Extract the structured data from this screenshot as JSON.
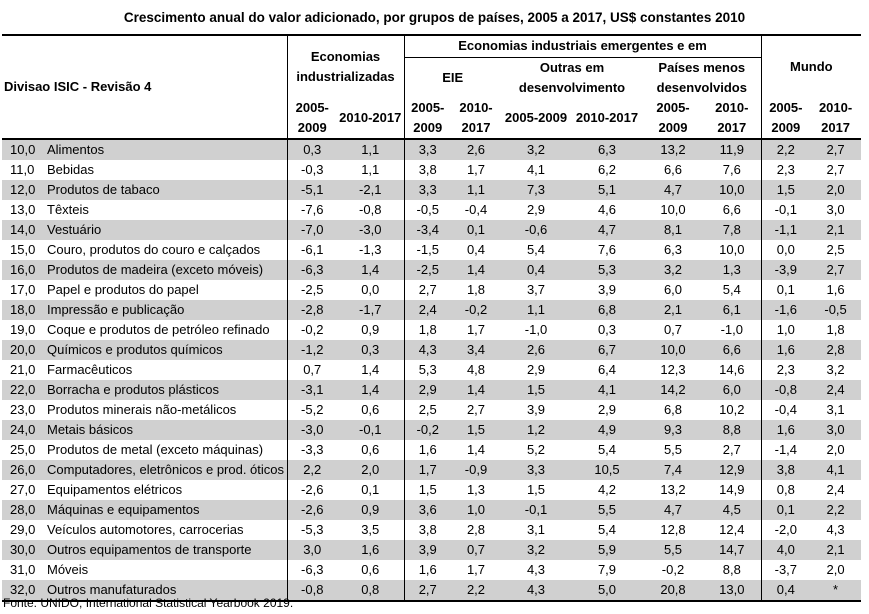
{
  "title": "Crescimento anual do valor adicionado, por grupos de países, 2005 a 2017, US$ constantes 2010",
  "headers": {
    "division": "Divisao ISIC - Revisão 4",
    "industrialized": "Economias industrializadas",
    "emerging": "Economias industriais emergentes e em",
    "eie": "EIE",
    "other_developing": "Outras em desenvolvimento",
    "least_developed": "Países menos desenvolvidos",
    "world": "Mundo",
    "periods": {
      "ind_a": "2005-2009",
      "ind_b": "2010-2017",
      "eie_a": "2005-2009",
      "eie_b": "2010-2017",
      "oth_a": "2005-2009",
      "oth_b": "2010-2017",
      "ld_a": "2005-2009",
      "ld_b": "2010-2017",
      "w_a": "2005-2009",
      "w_b": "2010-2017"
    }
  },
  "rows": [
    {
      "code": "10,0",
      "name": "Alimentos",
      "ind_a": "0,3",
      "ind_b": "1,1",
      "eie_a": "3,3",
      "eie_b": "2,6",
      "oth_a": "3,2",
      "oth_b": "6,3",
      "ld_a": "13,2",
      "ld_b": "11,9",
      "w_a": "2,2",
      "w_b": "2,7"
    },
    {
      "code": "11,0",
      "name": "Bebidas",
      "ind_a": "-0,3",
      "ind_b": "1,1",
      "eie_a": "3,8",
      "eie_b": "1,7",
      "oth_a": "4,1",
      "oth_b": "6,2",
      "ld_a": "6,6",
      "ld_b": "7,6",
      "w_a": "2,3",
      "w_b": "2,7"
    },
    {
      "code": "12,0",
      "name": "Produtos de tabaco",
      "ind_a": "-5,1",
      "ind_b": "-2,1",
      "eie_a": "3,3",
      "eie_b": "1,1",
      "oth_a": "7,3",
      "oth_b": "5,1",
      "ld_a": "4,7",
      "ld_b": "10,0",
      "w_a": "1,5",
      "w_b": "2,0"
    },
    {
      "code": "13,0",
      "name": "Têxteis",
      "ind_a": "-7,6",
      "ind_b": "-0,8",
      "eie_a": "-0,5",
      "eie_b": "-0,4",
      "oth_a": "2,9",
      "oth_b": "4,6",
      "ld_a": "10,0",
      "ld_b": "6,6",
      "w_a": "-0,1",
      "w_b": "3,0"
    },
    {
      "code": "14,0",
      "name": "Vestuário",
      "ind_a": "-7,0",
      "ind_b": "-3,0",
      "eie_a": "-3,4",
      "eie_b": "0,1",
      "oth_a": "-0,6",
      "oth_b": "4,7",
      "ld_a": "8,1",
      "ld_b": "7,8",
      "w_a": "-1,1",
      "w_b": "2,1"
    },
    {
      "code": "15,0",
      "name": "Couro, produtos do couro e calçados",
      "ind_a": "-6,1",
      "ind_b": "-1,3",
      "eie_a": "-1,5",
      "eie_b": "0,4",
      "oth_a": "5,4",
      "oth_b": "7,6",
      "ld_a": "6,3",
      "ld_b": "10,0",
      "w_a": "0,0",
      "w_b": "2,5"
    },
    {
      "code": "16,0",
      "name": "Produtos de madeira (exceto móveis)",
      "ind_a": "-6,3",
      "ind_b": "1,4",
      "eie_a": "-2,5",
      "eie_b": "1,4",
      "oth_a": "0,4",
      "oth_b": "5,3",
      "ld_a": "3,2",
      "ld_b": "1,3",
      "w_a": "-3,9",
      "w_b": "2,7"
    },
    {
      "code": "17,0",
      "name": "Papel e produtos do papel",
      "ind_a": "-2,5",
      "ind_b": "0,0",
      "eie_a": "2,7",
      "eie_b": "1,8",
      "oth_a": "3,7",
      "oth_b": "3,9",
      "ld_a": "6,0",
      "ld_b": "5,4",
      "w_a": "0,1",
      "w_b": "1,6"
    },
    {
      "code": "18,0",
      "name": "Impressão e publicação",
      "ind_a": "-2,8",
      "ind_b": "-1,7",
      "eie_a": "2,4",
      "eie_b": "-0,2",
      "oth_a": "1,1",
      "oth_b": "6,8",
      "ld_a": "2,1",
      "ld_b": "6,1",
      "w_a": "-1,6",
      "w_b": "-0,5"
    },
    {
      "code": "19,0",
      "name": "Coque e produtos de petróleo refinado",
      "ind_a": "-0,2",
      "ind_b": "0,9",
      "eie_a": "1,8",
      "eie_b": "1,7",
      "oth_a": "-1,0",
      "oth_b": "0,3",
      "ld_a": "0,7",
      "ld_b": "-1,0",
      "w_a": "1,0",
      "w_b": "1,8"
    },
    {
      "code": "20,0",
      "name": "Químicos e produtos químicos",
      "ind_a": "-1,2",
      "ind_b": "0,3",
      "eie_a": "4,3",
      "eie_b": "3,4",
      "oth_a": "2,6",
      "oth_b": "6,7",
      "ld_a": "10,0",
      "ld_b": "6,6",
      "w_a": "1,6",
      "w_b": "2,8"
    },
    {
      "code": "21,0",
      "name": "Farmacêuticos",
      "ind_a": "0,7",
      "ind_b": "1,4",
      "eie_a": "5,3",
      "eie_b": "4,8",
      "oth_a": "2,9",
      "oth_b": "6,4",
      "ld_a": "12,3",
      "ld_b": "14,6",
      "w_a": "2,3",
      "w_b": "3,2"
    },
    {
      "code": "22,0",
      "name": "Borracha e produtos plásticos",
      "ind_a": "-3,1",
      "ind_b": "1,4",
      "eie_a": "2,9",
      "eie_b": "1,4",
      "oth_a": "1,5",
      "oth_b": "4,1",
      "ld_a": "14,2",
      "ld_b": "6,0",
      "w_a": "-0,8",
      "w_b": "2,4"
    },
    {
      "code": "23,0",
      "name": "Produtos minerais não-metálicos",
      "ind_a": "-5,2",
      "ind_b": "0,6",
      "eie_a": "2,5",
      "eie_b": "2,7",
      "oth_a": "3,9",
      "oth_b": "2,9",
      "ld_a": "6,8",
      "ld_b": "10,2",
      "w_a": "-0,4",
      "w_b": "3,1"
    },
    {
      "code": "24,0",
      "name": "Metais básicos",
      "ind_a": "-3,0",
      "ind_b": "-0,1",
      "eie_a": "-0,2",
      "eie_b": "1,5",
      "oth_a": "1,2",
      "oth_b": "4,9",
      "ld_a": "9,3",
      "ld_b": "8,8",
      "w_a": "1,6",
      "w_b": "3,0"
    },
    {
      "code": "25,0",
      "name": "Produtos de metal (exceto máquinas)",
      "ind_a": "-3,3",
      "ind_b": "0,6",
      "eie_a": "1,6",
      "eie_b": "1,4",
      "oth_a": "5,2",
      "oth_b": "5,4",
      "ld_a": "5,5",
      "ld_b": "2,7",
      "w_a": "-1,4",
      "w_b": "2,0"
    },
    {
      "code": "26,0",
      "name": "Computadores, eletrônicos e prod. óticos",
      "ind_a": "2,2",
      "ind_b": "2,0",
      "eie_a": "1,7",
      "eie_b": "-0,9",
      "oth_a": "3,3",
      "oth_b": "10,5",
      "ld_a": "7,4",
      "ld_b": "12,9",
      "w_a": "3,8",
      "w_b": "4,1"
    },
    {
      "code": "27,0",
      "name": "Equipamentos elétricos",
      "ind_a": "-2,6",
      "ind_b": "0,1",
      "eie_a": "1,5",
      "eie_b": "1,3",
      "oth_a": "1,5",
      "oth_b": "4,2",
      "ld_a": "13,2",
      "ld_b": "14,9",
      "w_a": "0,8",
      "w_b": "2,4"
    },
    {
      "code": "28,0",
      "name": "Máquinas e equipamentos",
      "ind_a": "-2,6",
      "ind_b": "0,9",
      "eie_a": "3,6",
      "eie_b": "1,0",
      "oth_a": "-0,1",
      "oth_b": "5,5",
      "ld_a": "4,7",
      "ld_b": "4,5",
      "w_a": "0,1",
      "w_b": "2,2"
    },
    {
      "code": "29,0",
      "name": "Veículos automotores, carrocerias",
      "ind_a": "-5,3",
      "ind_b": "3,5",
      "eie_a": "3,8",
      "eie_b": "2,8",
      "oth_a": "3,1",
      "oth_b": "5,4",
      "ld_a": "12,8",
      "ld_b": "12,4",
      "w_a": "-2,0",
      "w_b": "4,3"
    },
    {
      "code": "30,0",
      "name": "Outros equipamentos de transporte",
      "ind_a": "3,0",
      "ind_b": "1,6",
      "eie_a": "3,9",
      "eie_b": "0,7",
      "oth_a": "3,2",
      "oth_b": "5,9",
      "ld_a": "5,5",
      "ld_b": "14,7",
      "w_a": "4,0",
      "w_b": "2,1"
    },
    {
      "code": "31,0",
      "name": "Móveis",
      "ind_a": "-6,3",
      "ind_b": "0,6",
      "eie_a": "1,6",
      "eie_b": "1,7",
      "oth_a": "4,3",
      "oth_b": "7,9",
      "ld_a": "-0,2",
      "ld_b": "8,8",
      "w_a": "-3,7",
      "w_b": "2,0"
    },
    {
      "code": "32,0",
      "name": "Outros manufaturados",
      "ind_a": "-0,8",
      "ind_b": "0,8",
      "eie_a": "2,7",
      "eie_b": "2,2",
      "oth_a": "4,3",
      "oth_b": "5,0",
      "ld_a": "20,8",
      "ld_b": "13,0",
      "w_a": "0,4",
      "w_b": "*"
    }
  ],
  "source": "Fonte: UNIDO, International Statistical Yearbook 2019."
}
